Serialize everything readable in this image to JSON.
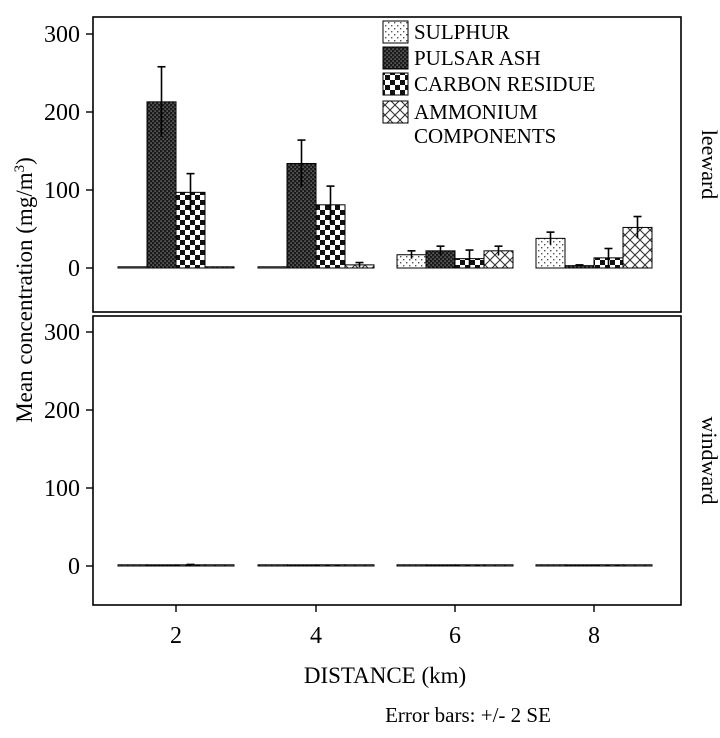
{
  "chart_data": {
    "type": "bar",
    "xlabel": "DISTANCE (km)",
    "ylabel_main": "Mean concentration (mg/m",
    "ylabel_sup": "3",
    "ylabel_close": ")",
    "note": "Error bars: +/- 2 SE",
    "categories": [
      "2",
      "4",
      "6",
      "8"
    ],
    "yticks": [
      "0",
      "100",
      "200",
      "300"
    ],
    "ylim": [
      0,
      300
    ],
    "legend_position": "top-right",
    "legend": [
      "SULPHUR",
      "PULSAR ASH",
      "CARBON RESIDUE",
      "AMMONIUM COMPONENTS"
    ],
    "legend_lines": [
      [
        "SULPHUR"
      ],
      [
        "PULSAR ASH"
      ],
      [
        "CARBON RESIDUE"
      ],
      [
        "AMMONIUM",
        "COMPONENTS"
      ]
    ],
    "patterns": [
      "sparse-dots",
      "dark-dots",
      "checker",
      "crosshatch"
    ],
    "panels": [
      {
        "label": "leeward",
        "series": [
          {
            "name": "SULPHUR",
            "values": [
              0,
              1,
              17,
              38
            ],
            "err": [
              0,
              0,
              5,
              8
            ]
          },
          {
            "name": "PULSAR ASH",
            "values": [
              213,
              134,
              22,
              3
            ],
            "err": [
              45,
              30,
              6,
              1
            ]
          },
          {
            "name": "CARBON RESIDUE",
            "values": [
              97,
              81,
              12,
              13
            ],
            "err": [
              24,
              24,
              11,
              12
            ]
          },
          {
            "name": "AMMONIUM COMPONENTS",
            "values": [
              0,
              4,
              22,
              52
            ],
            "err": [
              0,
              3,
              6,
              14
            ]
          }
        ]
      },
      {
        "label": "windward",
        "series": [
          {
            "name": "SULPHUR",
            "values": [
              0,
              0,
              0,
              0
            ],
            "err": [
              0,
              0,
              0,
              0
            ]
          },
          {
            "name": "PULSAR ASH",
            "values": [
              0,
              0,
              0,
              0
            ],
            "err": [
              0,
              0,
              0,
              0
            ]
          },
          {
            "name": "CARBON RESIDUE",
            "values": [
              1,
              0,
              0,
              0
            ],
            "err": [
              1,
              0,
              0,
              0
            ]
          },
          {
            "name": "AMMONIUM COMPONENTS",
            "values": [
              0,
              0,
              0,
              0
            ],
            "err": [
              0,
              0,
              0,
              0
            ]
          }
        ]
      }
    ]
  }
}
